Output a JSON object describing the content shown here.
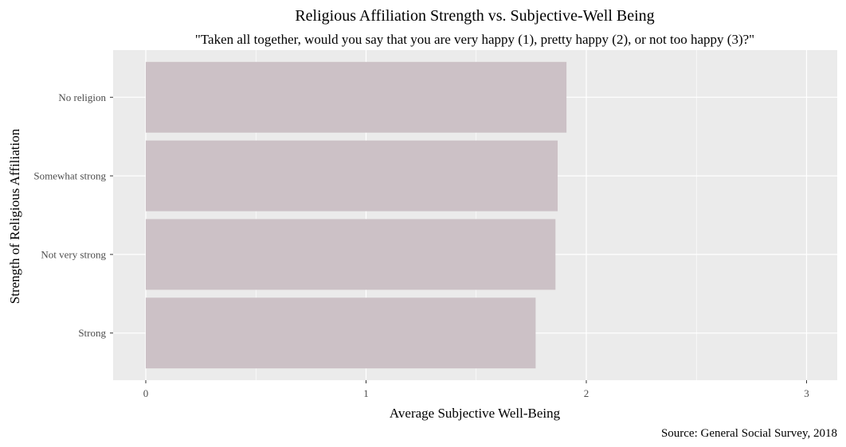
{
  "chart_data": {
    "type": "bar",
    "orientation": "horizontal",
    "title": "Religious Affiliation Strength vs. Subjective-Well Being",
    "subtitle": "\"Taken all together, would you say that you are very happy (1), pretty happy (2), or not too happy (3)?\"",
    "xlabel": "Average Subjective Well-Being",
    "ylabel": "Strength of Religious Affiliation",
    "caption": "Source: General Social Survey, 2018",
    "categories": [
      "No religion",
      "Somewhat strong",
      "Not very strong",
      "Strong"
    ],
    "values": [
      1.91,
      1.87,
      1.86,
      1.77
    ],
    "xlim": [
      0,
      3
    ],
    "xticks": [
      0,
      1,
      2,
      3
    ],
    "grid": true,
    "bar_color": "#ccc1c6",
    "panel_background": "#ebebeb",
    "gridline_color": "#ffffff"
  }
}
